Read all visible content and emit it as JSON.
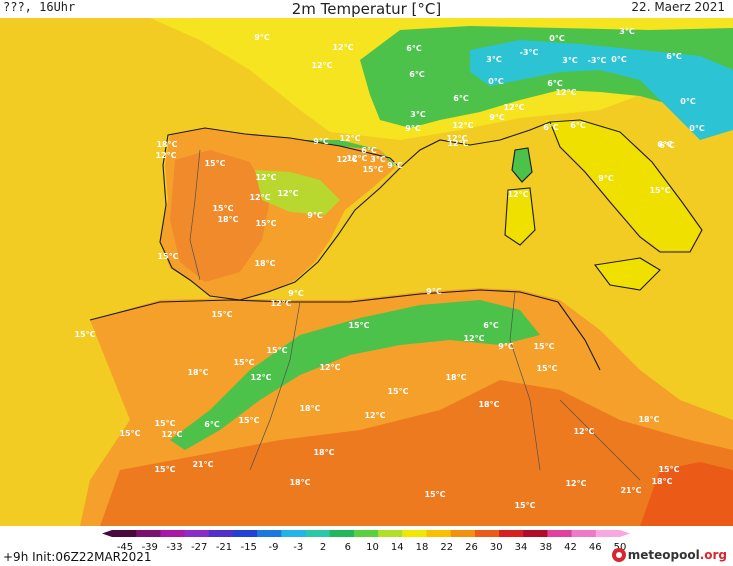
{
  "header": {
    "left": "???, 16Uhr",
    "title": "2m Temperatur [°C]",
    "date": "22. Maerz 2021"
  },
  "legend": {
    "ticks": [
      "-45",
      "-39",
      "-33",
      "-27",
      "-21",
      "-15",
      "-9",
      "-3",
      "2",
      "6",
      "10",
      "14",
      "18",
      "22",
      "26",
      "30",
      "34",
      "38",
      "42",
      "46",
      "50"
    ],
    "colors": [
      "#4a0840",
      "#7a1070",
      "#a818a8",
      "#8a2cc8",
      "#5030c8",
      "#2040d8",
      "#1c78e0",
      "#22b4e8",
      "#28c8a8",
      "#20b85a",
      "#58d040",
      "#b0e028",
      "#f0e800",
      "#f8c000",
      "#f49010",
      "#ec5a18",
      "#d82020",
      "#b00c28",
      "#e040a0",
      "#f078c8",
      "#f8a8e0"
    ]
  },
  "footer": {
    "init": "+9h  Init:06Z22MAR2021",
    "logo_main": "meteopool",
    "logo_suffix": ".org"
  },
  "map": {
    "colors": {
      "sea": "#f2cc22",
      "iberia": "#f4a02a",
      "iberia_hot": "#f08a2a",
      "africa": "#f4a02a",
      "africa_hot": "#ee7a20",
      "south_hot": "#ec5a18",
      "alps_green": "#4cc24a",
      "alps_cold": "#2cc4d4",
      "italy": "#f0e000",
      "atlantic_north": "#eed828",
      "france": "#f6e420",
      "coast": "#1a1a1a",
      "border": "#505050"
    },
    "labels": [
      {
        "text": "9°C"
      },
      {
        "text": "12°C"
      },
      {
        "text": "12°C"
      },
      {
        "text": "6°C"
      },
      {
        "text": "0°C"
      },
      {
        "text": "3°C"
      },
      {
        "text": "6°C"
      },
      {
        "text": "3°C"
      },
      {
        "text": "-3°C"
      },
      {
        "text": "3°C"
      },
      {
        "text": "0°C"
      },
      {
        "text": "-3°C"
      },
      {
        "text": "0°C"
      },
      {
        "text": "6°C"
      },
      {
        "text": "6°C"
      },
      {
        "text": "12°C"
      },
      {
        "text": "6°C"
      },
      {
        "text": "0°C"
      },
      {
        "text": "6°C"
      },
      {
        "text": "12°C"
      },
      {
        "text": "3°C"
      },
      {
        "text": "9°C"
      },
      {
        "text": "12°C"
      },
      {
        "text": "9°C"
      },
      {
        "text": "6°C"
      },
      {
        "text": "12°C"
      },
      {
        "text": "6°C"
      },
      {
        "text": "0°C"
      },
      {
        "text": "6°C"
      },
      {
        "text": "9°C"
      },
      {
        "text": "9°C"
      },
      {
        "text": "12°C"
      },
      {
        "text": "6°C"
      },
      {
        "text": "3°C"
      },
      {
        "text": "18°C"
      },
      {
        "text": "12°C"
      },
      {
        "text": "15°C"
      },
      {
        "text": "12°C"
      },
      {
        "text": "15°C"
      },
      {
        "text": "12°C"
      },
      {
        "text": "12°C"
      },
      {
        "text": "12°C"
      },
      {
        "text": "15°C"
      },
      {
        "text": "18°C"
      },
      {
        "text": "15°C"
      },
      {
        "text": "9°C"
      },
      {
        "text": "12°C"
      },
      {
        "text": "12°C"
      },
      {
        "text": "9°C"
      },
      {
        "text": "15°C"
      },
      {
        "text": "18°C"
      },
      {
        "text": "9°C"
      },
      {
        "text": "12°C"
      },
      {
        "text": "15°C"
      },
      {
        "text": "15°C"
      },
      {
        "text": "12°C"
      },
      {
        "text": "9°C"
      },
      {
        "text": "15°C"
      },
      {
        "text": "6°C"
      },
      {
        "text": "15°C"
      },
      {
        "text": "12°C"
      },
      {
        "text": "9°C"
      },
      {
        "text": "15°C"
      },
      {
        "text": "15°C"
      },
      {
        "text": "18°C"
      },
      {
        "text": "15°C"
      },
      {
        "text": "12°C"
      },
      {
        "text": "12°C"
      },
      {
        "text": "18°C"
      },
      {
        "text": "15°C"
      },
      {
        "text": "15°C"
      },
      {
        "text": "18°C"
      },
      {
        "text": "18°C"
      },
      {
        "text": "12°C"
      },
      {
        "text": "6°C"
      },
      {
        "text": "15°C"
      },
      {
        "text": "15°C"
      },
      {
        "text": "12°C"
      },
      {
        "text": "15°C"
      },
      {
        "text": "18°C"
      },
      {
        "text": "21°C"
      },
      {
        "text": "15°C"
      },
      {
        "text": "12°C"
      },
      {
        "text": "18°C"
      },
      {
        "text": "15°C"
      },
      {
        "text": "18°C"
      },
      {
        "text": "15°C"
      },
      {
        "text": "12°C"
      },
      {
        "text": "21°C"
      },
      {
        "text": "15°C"
      },
      {
        "text": "18°C"
      }
    ]
  }
}
